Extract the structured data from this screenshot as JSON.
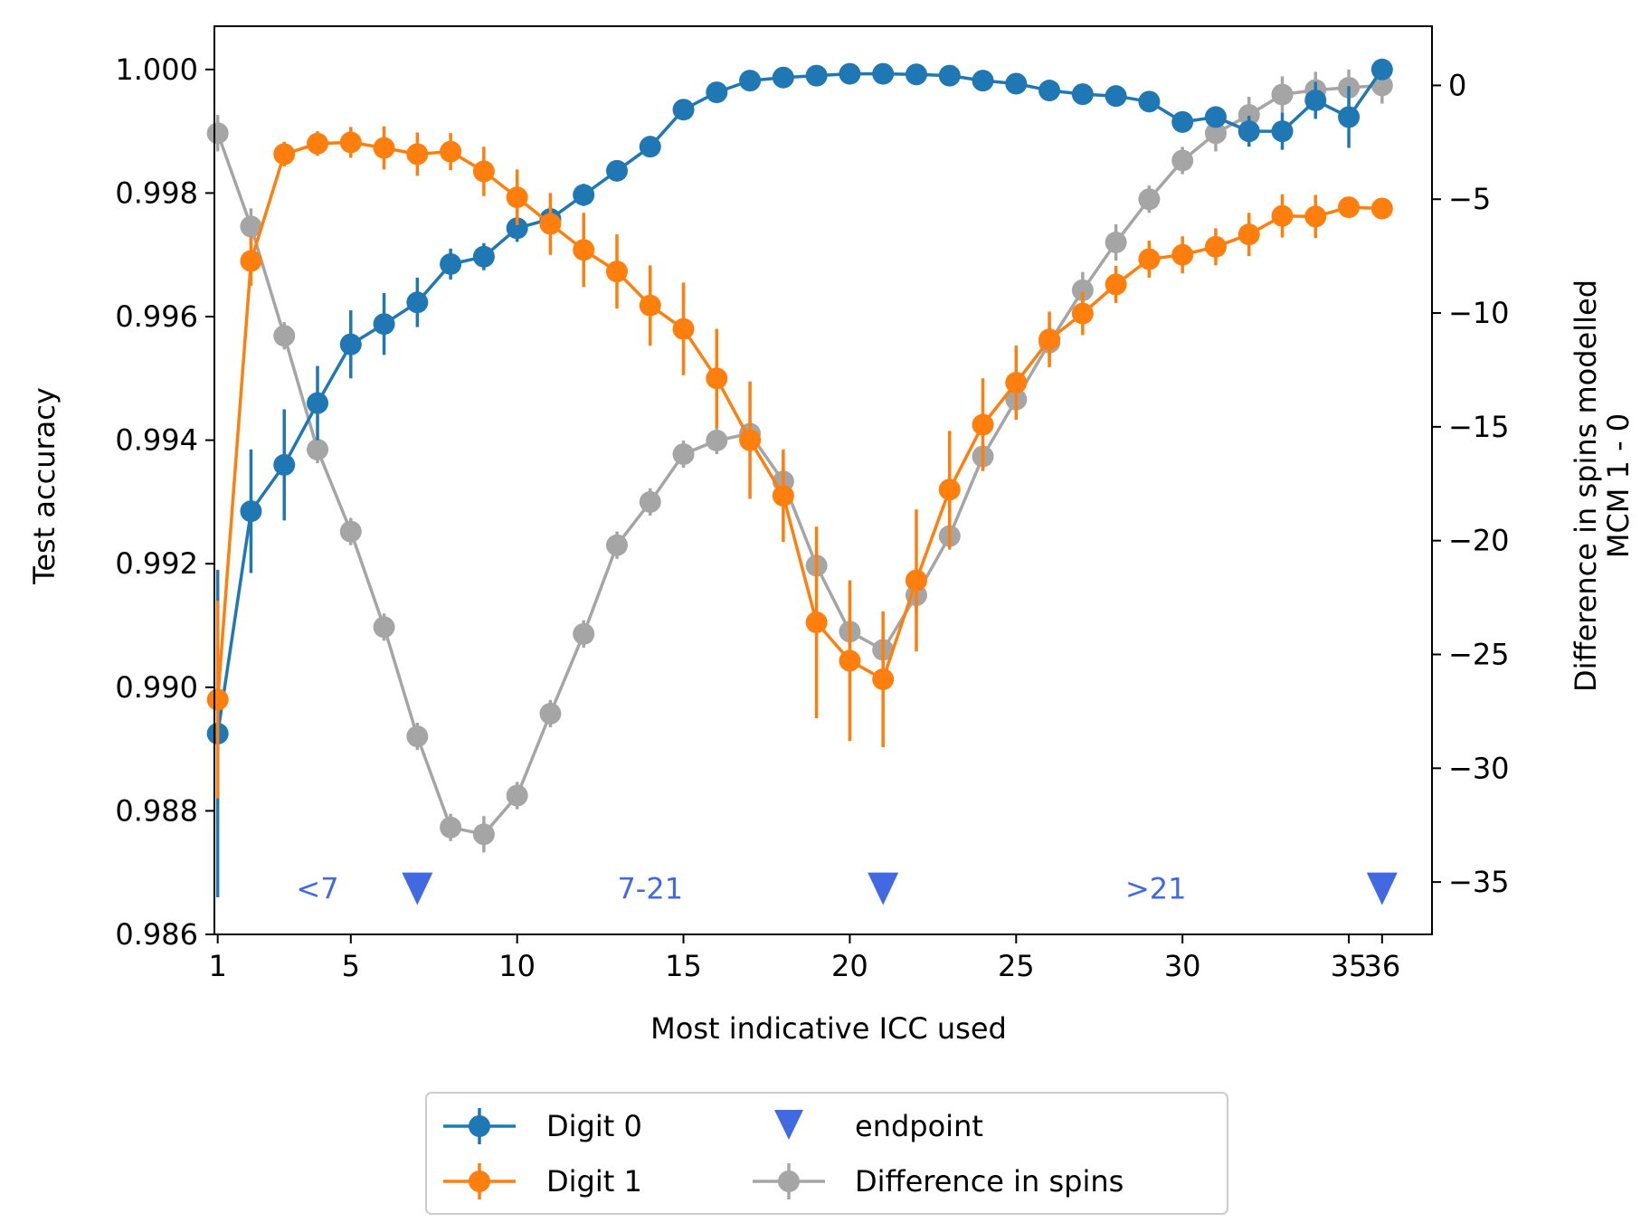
{
  "chart_data": {
    "type": "line",
    "xlabel": "Most indicative ICC used",
    "ylabel_left": "Test accuracy",
    "ylabel_right": [
      "Difference in spins modelled",
      "MCM 1 - 0"
    ],
    "xlim": [
      0.9,
      37.5
    ],
    "ylim_left": [
      0.986,
      1.0007
    ],
    "ylim_right": [
      -37.3,
      2.6
    ],
    "x_ticks": [
      1,
      5,
      10,
      15,
      20,
      25,
      30,
      35,
      36
    ],
    "x_tick_labels": [
      "1",
      "5",
      "10",
      "15",
      "20",
      "25",
      "30",
      "35",
      "36"
    ],
    "y_left_ticks": [
      0.986,
      0.988,
      0.99,
      0.992,
      0.994,
      0.996,
      0.998,
      1.0
    ],
    "y_left_tick_labels": [
      "0.986",
      "0.988",
      "0.990",
      "0.992",
      "0.994",
      "0.996",
      "0.998",
      "1.000"
    ],
    "y_right_ticks": [
      -35,
      -30,
      -25,
      -20,
      -15,
      -10,
      -5,
      0
    ],
    "y_right_tick_labels": [
      "−35",
      "−30",
      "−25",
      "−20",
      "−15",
      "−10",
      "−5",
      "0"
    ],
    "series": [
      {
        "name": "Digit 0",
        "axis": "left",
        "color": "#1f77b4",
        "alpha": 1,
        "x": [
          1,
          2,
          3,
          4,
          5,
          6,
          7,
          8,
          9,
          10,
          11,
          12,
          13,
          14,
          15,
          16,
          17,
          18,
          19,
          20,
          21,
          22,
          23,
          24,
          25,
          26,
          27,
          28,
          29,
          30,
          31,
          32,
          33,
          34,
          35,
          36
        ],
        "y": [
          0.98925,
          0.99285,
          0.9936,
          0.9946,
          0.99555,
          0.99588,
          0.99623,
          0.99685,
          0.99697,
          0.99743,
          0.99758,
          0.99797,
          0.99836,
          0.99875,
          0.99935,
          0.99963,
          0.99982,
          0.99987,
          0.9999,
          0.99993,
          0.99993,
          0.99992,
          0.9999,
          0.99982,
          0.99977,
          0.99966,
          0.9996,
          0.99957,
          0.99948,
          0.99915,
          0.99923,
          0.999,
          0.999,
          0.9995,
          0.99923,
          1.0
        ],
        "err": [
          0.00265,
          0.001,
          0.0009,
          0.0006,
          0.00055,
          0.0005,
          0.0004,
          0.00025,
          0.00022,
          0.00022,
          0.0002,
          0.00018,
          0.00017,
          0.00016,
          0.0001,
          6e-05,
          4e-05,
          3e-05,
          3e-05,
          3e-05,
          3e-05,
          3e-05,
          3e-05,
          4e-05,
          4e-05,
          5e-05,
          6e-05,
          6e-05,
          8e-05,
          0.00012,
          0.00015,
          0.00025,
          0.0003,
          0.0003,
          0.0005,
          2e-05
        ]
      },
      {
        "name": "Digit 1",
        "axis": "left",
        "color": "#ff7f0e",
        "alpha": 1,
        "x": [
          1,
          2,
          3,
          4,
          5,
          6,
          7,
          8,
          9,
          10,
          11,
          12,
          13,
          14,
          15,
          16,
          17,
          18,
          19,
          20,
          21,
          22,
          23,
          24,
          25,
          26,
          27,
          28,
          29,
          30,
          31,
          32,
          33,
          34,
          35,
          36
        ],
        "y": [
          0.9898,
          0.9969,
          0.99863,
          0.9988,
          0.99882,
          0.99873,
          0.99863,
          0.99867,
          0.99835,
          0.99793,
          0.9975,
          0.99708,
          0.99673,
          0.99618,
          0.9958,
          0.995,
          0.994,
          0.9931,
          0.99105,
          0.99043,
          0.99013,
          0.99173,
          0.9932,
          0.99425,
          0.99493,
          0.99563,
          0.99605,
          0.99652,
          0.99693,
          0.997,
          0.99713,
          0.99733,
          0.99763,
          0.99762,
          0.99777,
          0.99775
        ],
        "err": [
          0.0016,
          0.0004,
          0.0002,
          0.0002,
          0.00025,
          0.00035,
          0.00035,
          0.0003,
          0.0004,
          0.00045,
          0.0005,
          0.0006,
          0.0006,
          0.00065,
          0.00075,
          0.0008,
          0.00095,
          0.00075,
          0.00155,
          0.0013,
          0.0011,
          0.00115,
          0.00095,
          0.00075,
          0.0006,
          0.00045,
          0.00035,
          0.0003,
          0.0003,
          0.0003,
          0.0003,
          0.00035,
          0.00035,
          0.00035,
          5e-05,
          5e-05
        ]
      },
      {
        "name": "Difference in spins",
        "axis": "right",
        "color": "#808080",
        "alpha": 0.7,
        "x": [
          1,
          2,
          3,
          4,
          5,
          6,
          7,
          8,
          9,
          10,
          11,
          12,
          13,
          14,
          15,
          16,
          17,
          18,
          19,
          20,
          21,
          22,
          23,
          24,
          25,
          26,
          27,
          28,
          29,
          30,
          31,
          32,
          33,
          34,
          35,
          36
        ],
        "y": [
          -2.1,
          -6.2,
          -11.0,
          -16.0,
          -19.6,
          -23.8,
          -28.6,
          -32.6,
          -32.9,
          -31.2,
          -27.6,
          -24.1,
          -20.2,
          -18.3,
          -16.2,
          -15.6,
          -15.3,
          -17.4,
          -21.1,
          -24.0,
          -24.8,
          -22.4,
          -19.8,
          -16.3,
          -13.8,
          -11.3,
          -9.0,
          -6.9,
          -5.0,
          -3.3,
          -2.1,
          -1.3,
          -0.4,
          -0.2,
          -0.1,
          0.0
        ],
        "err": [
          0.8,
          0.8,
          0.6,
          0.6,
          0.6,
          0.6,
          0.6,
          0.6,
          0.8,
          0.6,
          0.6,
          0.6,
          0.6,
          0.6,
          0.6,
          0.6,
          0.6,
          0.6,
          0.6,
          0.6,
          0.6,
          0.8,
          0.6,
          0.6,
          0.6,
          0.8,
          0.8,
          0.8,
          0.6,
          0.6,
          0.8,
          0.8,
          0.8,
          0.8,
          0.8,
          0.8
        ]
      }
    ],
    "endpoints": {
      "name": "endpoint",
      "color": "#4169e1",
      "x": [
        7,
        21,
        36
      ],
      "y_right": -35.3
    },
    "region_labels": [
      {
        "text": "<7",
        "x": 4.0
      },
      {
        "text": "7-21",
        "x": 14.0
      },
      {
        "text": ">21",
        "x": 29.2
      }
    ],
    "legend": {
      "placement": "below-center",
      "columns": 2,
      "entries": [
        "Digit 0",
        "Digit 1",
        "endpoint",
        "Difference in spins"
      ]
    }
  }
}
